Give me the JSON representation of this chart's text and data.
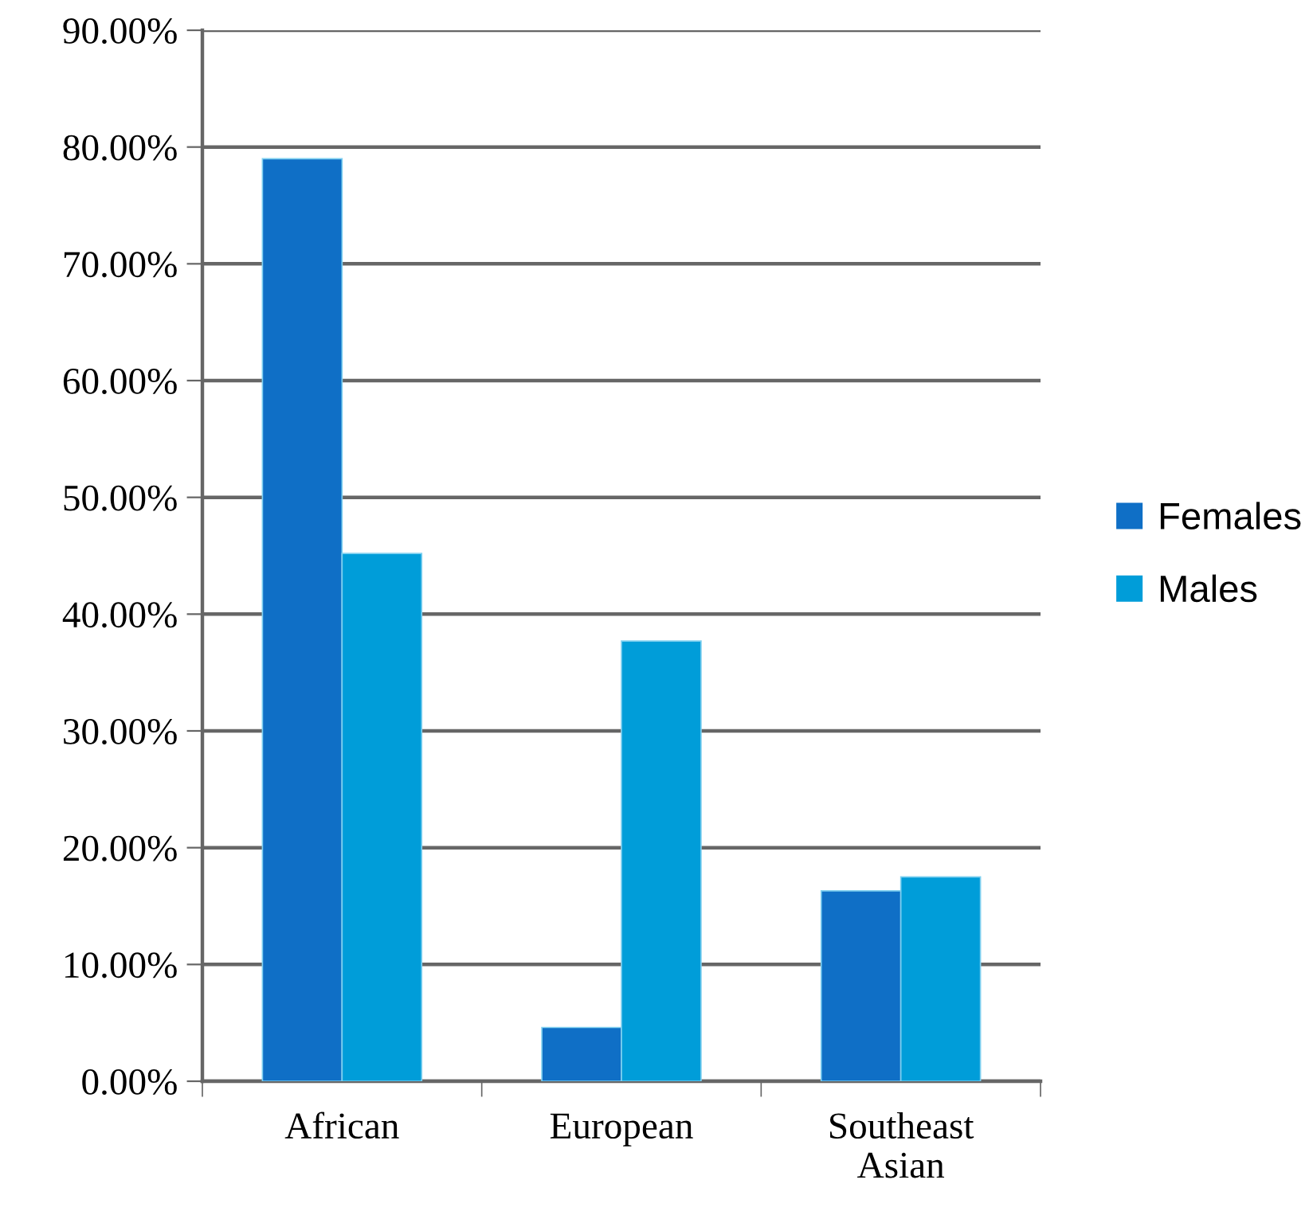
{
  "chart_data": {
    "type": "bar",
    "categories": [
      "African",
      "European",
      "Southeast\nAsian"
    ],
    "series": [
      {
        "name": "Females",
        "color": "#0f6fc6",
        "values": [
          79.0,
          4.6,
          16.3
        ]
      },
      {
        "name": "Males",
        "color": "#009dd9",
        "values": [
          45.2,
          37.7,
          17.5
        ]
      }
    ],
    "ylim": [
      0,
      90
    ],
    "yticks": [
      {
        "value": 0,
        "label": "0.00%"
      },
      {
        "value": 10,
        "label": "10.00%"
      },
      {
        "value": 20,
        "label": "20.00%"
      },
      {
        "value": 30,
        "label": "30.00%"
      },
      {
        "value": 40,
        "label": "40.00%"
      },
      {
        "value": 50,
        "label": "50.00%"
      },
      {
        "value": 60,
        "label": "60.00%"
      },
      {
        "value": 70,
        "label": "70.00%"
      },
      {
        "value": 80,
        "label": "80.00%"
      },
      {
        "value": 90,
        "label": "90.00%"
      }
    ],
    "grid": "y",
    "legend": "right"
  }
}
